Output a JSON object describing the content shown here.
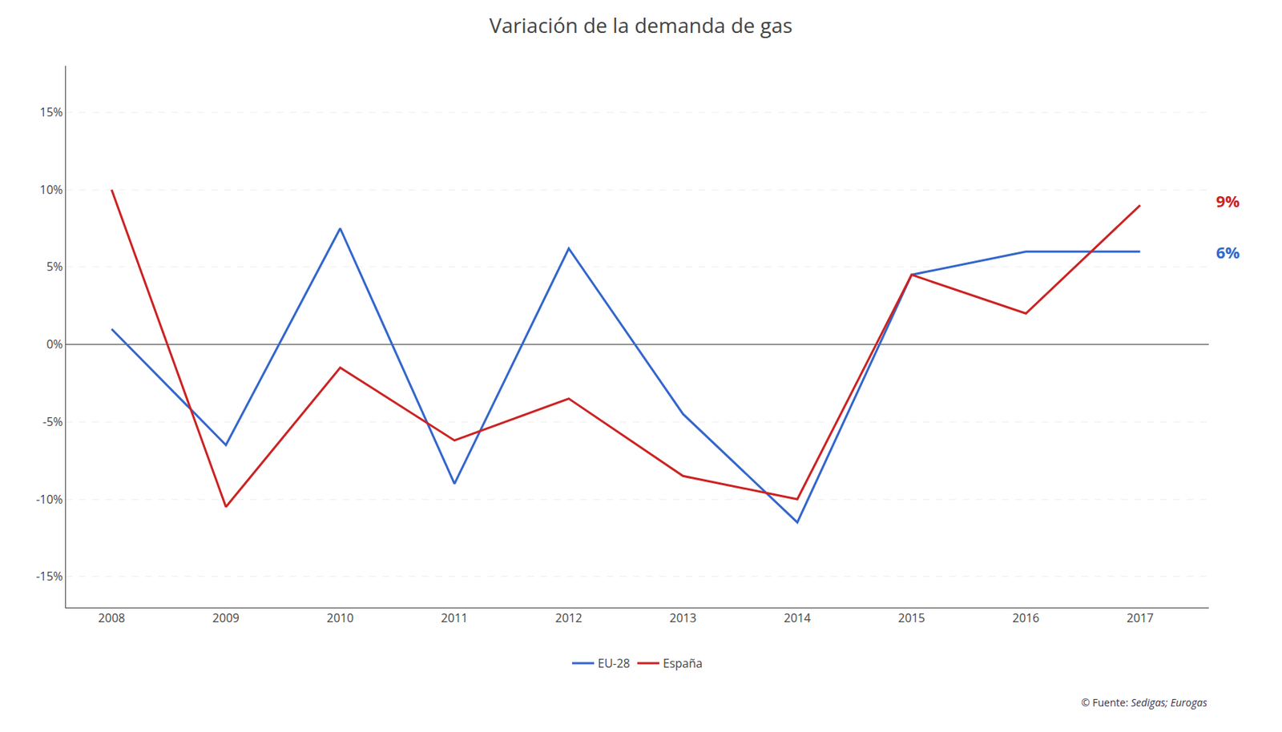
{
  "chart_data": {
    "type": "line",
    "title": "Variación de la demanda de gas",
    "x": [
      2008,
      2009,
      2010,
      2011,
      2012,
      2013,
      2014,
      2015,
      2016,
      2017
    ],
    "series": [
      {
        "name": "EU-28",
        "color": "#3366CC",
        "values": [
          1.0,
          -6.5,
          7.5,
          -9.0,
          6.2,
          -4.5,
          -11.5,
          4.5,
          6.0,
          6.0
        ]
      },
      {
        "name": "España",
        "color": "#CC2222",
        "values": [
          10.0,
          -10.5,
          -1.5,
          -6.2,
          -3.5,
          -8.5,
          -10.0,
          4.5,
          2.0,
          9.0
        ]
      }
    ],
    "xlim": [
      2007.6,
      2017.6
    ],
    "xticks": [
      2008,
      2009,
      2010,
      2011,
      2012,
      2013,
      2014,
      2015,
      2016,
      2017
    ],
    "ylim": [
      -17,
      18
    ],
    "yticks": [
      {
        "value": -15,
        "label": "-15%"
      },
      {
        "value": -10,
        "label": "-10%"
      },
      {
        "value": -5,
        "label": "-5%"
      },
      {
        "value": 0,
        "label": "0%"
      },
      {
        "value": 5,
        "label": "5%"
      },
      {
        "value": 10,
        "label": "10%"
      },
      {
        "value": 15,
        "label": "15%"
      }
    ],
    "grid": "y",
    "legend": "bottom",
    "annotations": [
      {
        "text": "6%",
        "y": 6.0,
        "color": "#3366CC"
      },
      {
        "text": "9%",
        "y": 9.0,
        "color": "#CC2222"
      }
    ],
    "source": [
      "© Fuente: ",
      "Sedigas; Eurogas"
    ]
  }
}
